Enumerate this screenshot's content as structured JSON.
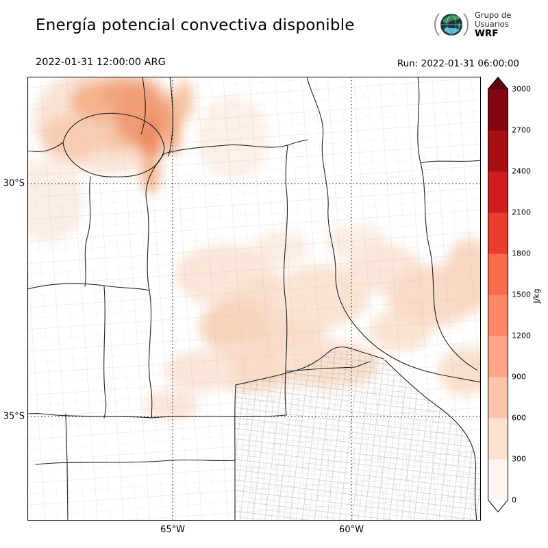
{
  "header": {
    "title": "Energía potencial convectiva disponible",
    "logo": {
      "line1": "Grupo de",
      "line2": "Usuarios",
      "line3": "WRF"
    }
  },
  "times": {
    "valid": "2022-01-31 12:00:00 ARG",
    "run": "Run: 2022-01-31 06:00:00"
  },
  "map": {
    "y_ticks": [
      {
        "label": "30°S"
      },
      {
        "label": "35°S"
      }
    ],
    "x_ticks": [
      {
        "label": "65°W"
      },
      {
        "label": "60°W"
      }
    ]
  },
  "colorbar": {
    "unit": "J/kg",
    "ticks": [
      "0",
      "300",
      "600",
      "900",
      "1200",
      "1500",
      "1800",
      "2100",
      "2400",
      "2700",
      "3000"
    ],
    "colors": [
      "#fff5f0",
      "#fde2d2",
      "#fcc4ab",
      "#fca588",
      "#fb8767",
      "#f96a4a",
      "#ea3d2e",
      "#cf1c1f",
      "#a80f15",
      "#820711"
    ],
    "arrow_top_color": "#5c0410",
    "arrow_bottom_color": "#ffffff"
  },
  "chart_data": {
    "type": "heatmap",
    "title": "Energía potencial convectiva disponible",
    "variable": "CAPE (convective available potential energy)",
    "unit": "J/kg",
    "valid_time": "2022-01-31 12:00:00 ARG",
    "model_run": "2022-01-31 06:00:00",
    "source_logo": "Grupo de Usuarios WRF",
    "colorbar_levels": [
      0,
      300,
      600,
      900,
      1200,
      1500,
      1800,
      2100,
      2400,
      2700,
      3000
    ],
    "colorbar_extend": "both",
    "x_axis": {
      "label": "",
      "ticks": [
        "65°W",
        "60°W"
      ]
    },
    "y_axis": {
      "label": "",
      "ticks": [
        "30°S",
        "35°S"
      ]
    },
    "map_extent": {
      "lon_west": "≈69°W",
      "lon_east": "≈56.5°W",
      "lat_north": "≈27.5°S",
      "lat_south": "≈37°S"
    },
    "regions": [
      {
        "location": "northwest mountains (≈28-30°S, 65.5-67.5°W)",
        "value_jkg": "300-900"
      },
      {
        "location": "central band Córdoba/Santa Fe (≈31-33.5°S)",
        "value_jkg": "0-300"
      },
      {
        "location": "east near 30-33°S, 57-59°W",
        "value_jkg": "0-300"
      },
      {
        "location": "Buenos Aires and south of 34°S",
        "value_jkg": "≈0"
      }
    ]
  }
}
